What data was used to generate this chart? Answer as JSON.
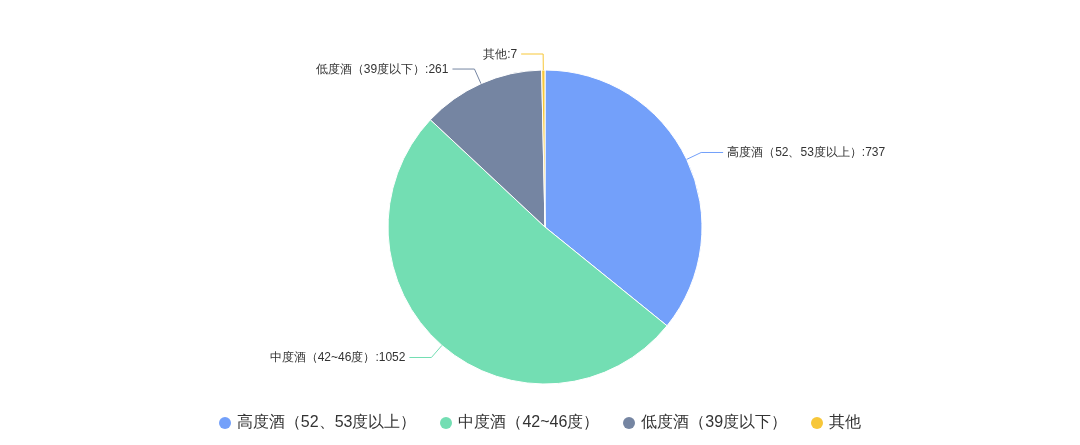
{
  "chart_data": {
    "type": "pie",
    "categories": [
      "高度酒（52、53度以上）",
      "中度酒（42~46度）",
      "低度酒（39度以下）",
      "其他"
    ],
    "values": [
      737,
      1052,
      261,
      7
    ],
    "colors": [
      "#73a0fa",
      "#73deb3",
      "#7585a2",
      "#f7c739"
    ],
    "value_labels": [
      ":737",
      ":1052",
      ":261",
      ":7"
    ],
    "legend": "bottom"
  }
}
